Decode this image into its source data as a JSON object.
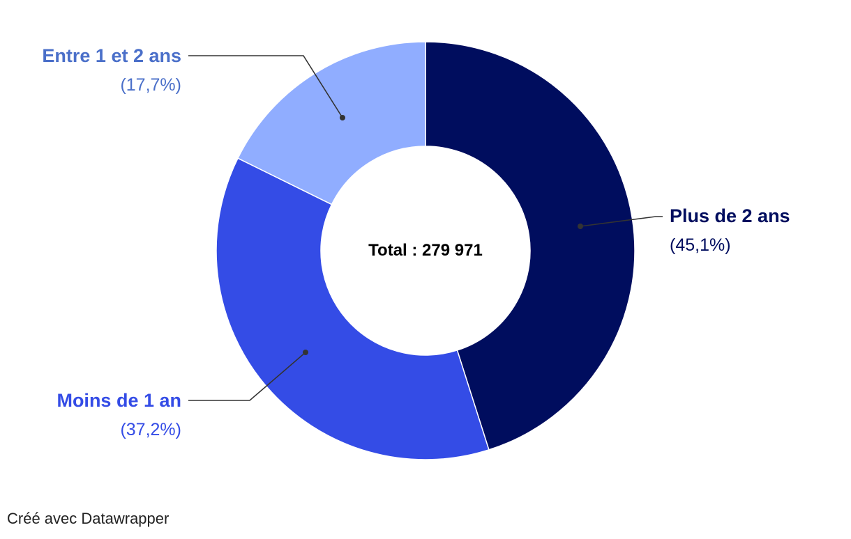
{
  "chart_data": {
    "type": "pie",
    "variant": "donut",
    "center_label": "Total : 279 971",
    "slices": [
      {
        "label": "Plus de 2 ans",
        "value": 45.1,
        "pct_label": "(45,1%)",
        "color": "#000d5e"
      },
      {
        "label": "Moins de 1 an",
        "value": 37.2,
        "pct_label": "(37,2%)",
        "color": "#344ce6"
      },
      {
        "label": "Entre 1 et 2 ans",
        "value": 17.7,
        "pct_label": "(17,7%)",
        "color": "#90adff",
        "label_color": "#4a6fc9"
      }
    ]
  },
  "footer": {
    "credit": "Créé avec Datawrapper"
  }
}
